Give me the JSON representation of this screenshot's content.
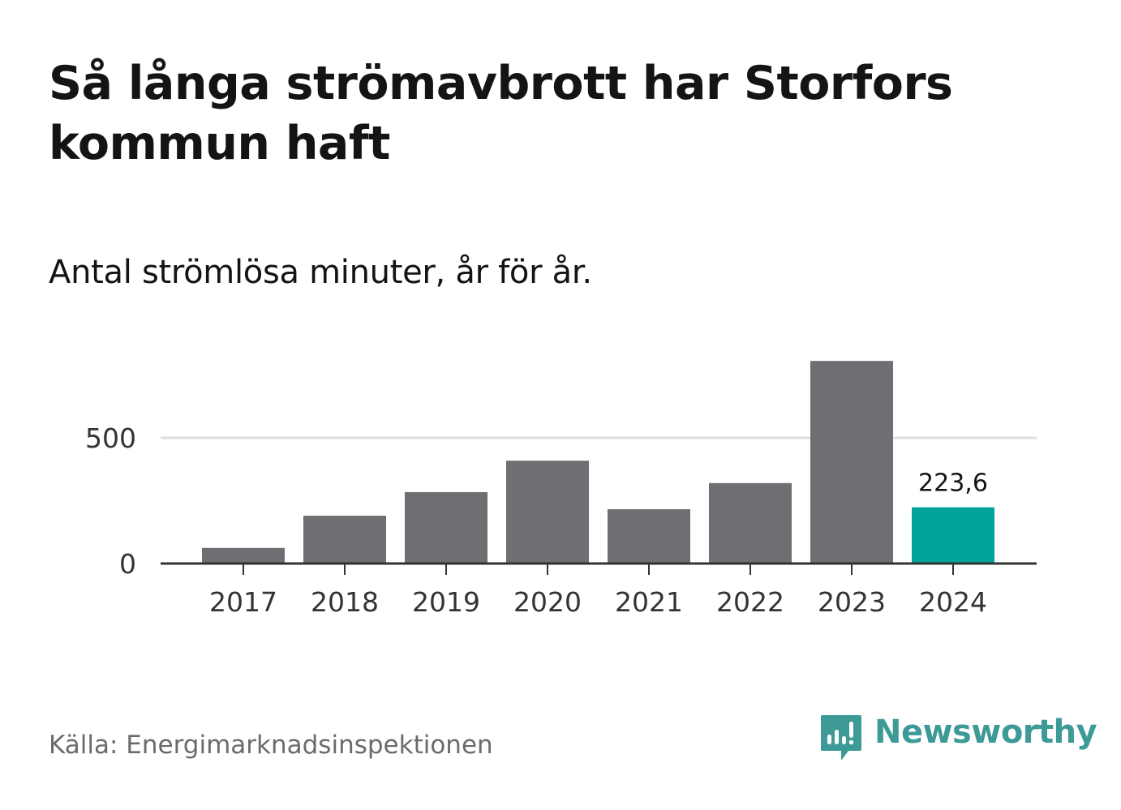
{
  "header": {
    "title": "Så långa strömavbrott har Storfors kommun haft",
    "subtitle": "Antal strömlösa minuter, år för år."
  },
  "footer": {
    "source": "Källa: Energimarknadsinspektionen",
    "brand": "Newsworthy",
    "brand_icon": "bar-chart-speech-bubble-icon"
  },
  "chart_data": {
    "type": "bar",
    "categories": [
      "2017",
      "2018",
      "2019",
      "2020",
      "2021",
      "2022",
      "2023",
      "2024"
    ],
    "values": [
      62,
      190,
      284,
      409,
      216,
      320,
      806,
      223.6
    ],
    "highlight_index": 7,
    "highlight_label": "223,6",
    "ylim": [
      0,
      820
    ],
    "yticks": [
      0,
      500
    ],
    "ytick_labels": [
      "0",
      "500"
    ],
    "grid": true,
    "colors": {
      "bar": "#6e6e73",
      "highlight": "#00a29a",
      "grid": "#dedede",
      "axis": "#333333",
      "brand": "#3d9a97"
    }
  }
}
